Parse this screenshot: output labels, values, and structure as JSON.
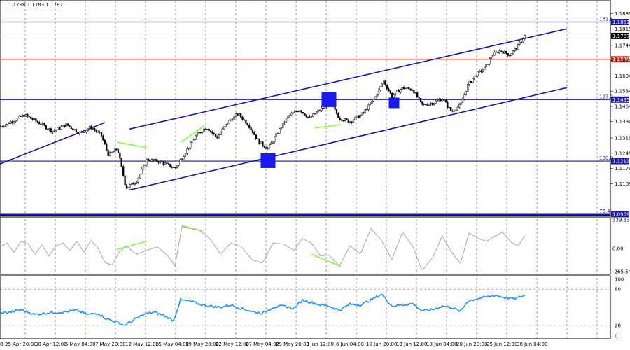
{
  "header": {
    "symbol_text": "1.1788 1.1783 1.1787"
  },
  "colors": {
    "bull": "#000000",
    "bear": "#000000",
    "channel": "#1a1aa0",
    "fib_line": "#1a1aa0",
    "level_red": "#e03020",
    "cci_line": "#a8a8a8",
    "rsi_line": "#1e90ff",
    "divergence": "#7cff3a",
    "marker": "#1a1aee",
    "tag_bg": "#1a1aa0",
    "tag_bg_red": "#e03020"
  },
  "price_panel": {
    "ylim": [
      1.0969,
      1.1933
    ],
    "ticks": [
      "1.1889",
      "1.1819",
      "1.1744",
      "1.1674",
      "1.1604",
      "1.1534",
      "1.1464",
      "1.1394",
      "1.1319",
      "1.1249",
      "1.1179",
      "1.1109"
    ],
    "tick_values": [
      1.1889,
      1.1819,
      1.1744,
      1.1674,
      1.1604,
      1.1534,
      1.1464,
      1.1394,
      1.1319,
      1.1249,
      1.1179,
      1.1109
    ],
    "levels": [
      {
        "name": "fib-161-8",
        "label": "161.8",
        "price": 1.1851,
        "tag": "1.1851",
        "color": "blue"
      },
      {
        "name": "level-1680",
        "label": "",
        "price": 1.168,
        "tag": "1.1680",
        "color": "red"
      },
      {
        "name": "fib-127-2",
        "label": "127.2",
        "price": 1.1495,
        "tag": "1.1495",
        "color": "blue"
      },
      {
        "name": "fib-100-0",
        "label": "100.0",
        "price": 1.1213,
        "tag": "1.1213",
        "color": "blue"
      },
      {
        "name": "fib-76-4",
        "label": "76.4",
        "price": 1.0969,
        "tag": "1.0969",
        "color": "blue"
      }
    ],
    "current_price": {
      "price": 1.1787,
      "tag": "1.1787"
    }
  },
  "cci_panel": {
    "ylim": [
      -265.544,
      329.3341
    ],
    "ticks": [
      "329.3341",
      "0.00",
      "-265.544"
    ],
    "tick_values": [
      329.3341,
      0,
      -265.544
    ]
  },
  "rsi_panel": {
    "ylim": [
      0,
      100
    ],
    "ticks": [
      "100",
      "80",
      "20",
      "0"
    ],
    "tick_values": [
      100,
      80,
      20,
      0
    ],
    "dashed_levels": [
      80,
      20
    ]
  },
  "x_axis": {
    "labels": [
      "25 Apr 20:00",
      "30 Apr 12:00",
      "5 May 04:00",
      "7 May 20:00",
      "12 May 12:00",
      "15 May 04:00",
      "19 May 20:00",
      "22 May 12:00",
      "27 May 04:00",
      "29 May 20:00",
      "3 Jun 12:00",
      "6 Jun 04:00",
      "10 Jun 20:00",
      "13 Jun 12:00",
      "18 Jun 04:00",
      "20 Jun 20:00",
      "25 Jun 12:00",
      "30 Jun 04:00"
    ],
    "edge_label": "0"
  },
  "chart_data": {
    "type": "candlestick",
    "title": "",
    "price_knots": [
      [
        0,
        1.137
      ],
      [
        20,
        1.14
      ],
      [
        35,
        1.1425
      ],
      [
        55,
        1.139
      ],
      [
        75,
        1.135
      ],
      [
        95,
        1.138
      ],
      [
        115,
        1.134
      ],
      [
        130,
        1.137
      ],
      [
        145,
        1.133
      ],
      [
        155,
        1.124
      ],
      [
        168,
        1.127
      ],
      [
        180,
        1.109
      ],
      [
        195,
        1.112
      ],
      [
        210,
        1.122
      ],
      [
        230,
        1.121
      ],
      [
        250,
        1.118
      ],
      [
        262,
        1.124
      ],
      [
        280,
        1.133
      ],
      [
        295,
        1.137
      ],
      [
        310,
        1.132
      ],
      [
        325,
        1.139
      ],
      [
        340,
        1.143
      ],
      [
        355,
        1.138
      ],
      [
        370,
        1.13
      ],
      [
        383,
        1.127
      ],
      [
        398,
        1.135
      ],
      [
        412,
        1.142
      ],
      [
        428,
        1.145
      ],
      [
        442,
        1.141
      ],
      [
        458,
        1.145
      ],
      [
        472,
        1.148
      ],
      [
        485,
        1.141
      ],
      [
        500,
        1.1395
      ],
      [
        518,
        1.143
      ],
      [
        535,
        1.15
      ],
      [
        548,
        1.158
      ],
      [
        560,
        1.151
      ],
      [
        575,
        1.155
      ],
      [
        590,
        1.154
      ],
      [
        603,
        1.147
      ],
      [
        618,
        1.148
      ],
      [
        632,
        1.15
      ],
      [
        645,
        1.144
      ],
      [
        658,
        1.147
      ],
      [
        668,
        1.156
      ],
      [
        680,
        1.161
      ],
      [
        693,
        1.164
      ],
      [
        703,
        1.17
      ],
      [
        715,
        1.172
      ],
      [
        728,
        1.17
      ],
      [
        740,
        1.174
      ],
      [
        750,
        1.179
      ]
    ],
    "cci_knots": [
      [
        0,
        20
      ],
      [
        10,
        60
      ],
      [
        20,
        -40
      ],
      [
        30,
        80
      ],
      [
        40,
        50
      ],
      [
        50,
        -60
      ],
      [
        60,
        40
      ],
      [
        70,
        -80
      ],
      [
        80,
        30
      ],
      [
        90,
        60
      ],
      [
        100,
        -20
      ],
      [
        110,
        80
      ],
      [
        120,
        -40
      ],
      [
        130,
        90
      ],
      [
        140,
        10
      ],
      [
        150,
        -150
      ],
      [
        160,
        -180
      ],
      [
        170,
        -40
      ],
      [
        180,
        30
      ],
      [
        195,
        -60
      ],
      [
        210,
        -20
      ],
      [
        225,
        20
      ],
      [
        240,
        -80
      ],
      [
        250,
        -190
      ],
      [
        260,
        240
      ],
      [
        272,
        220
      ],
      [
        285,
        200
      ],
      [
        300,
        110
      ],
      [
        315,
        -60
      ],
      [
        330,
        60
      ],
      [
        345,
        20
      ],
      [
        360,
        -120
      ],
      [
        375,
        -160
      ],
      [
        390,
        60
      ],
      [
        405,
        50
      ],
      [
        420,
        -20
      ],
      [
        432,
        110
      ],
      [
        445,
        60
      ],
      [
        458,
        -80
      ],
      [
        470,
        -70
      ],
      [
        485,
        -190
      ],
      [
        500,
        30
      ],
      [
        515,
        -60
      ],
      [
        530,
        220
      ],
      [
        545,
        90
      ],
      [
        560,
        -120
      ],
      [
        575,
        180
      ],
      [
        590,
        20
      ],
      [
        603,
        -240
      ],
      [
        618,
        -100
      ],
      [
        632,
        140
      ],
      [
        645,
        -40
      ],
      [
        658,
        -160
      ],
      [
        670,
        170
      ],
      [
        683,
        110
      ],
      [
        695,
        80
      ],
      [
        706,
        130
      ],
      [
        718,
        180
      ],
      [
        730,
        70
      ],
      [
        740,
        30
      ],
      [
        750,
        140
      ]
    ],
    "rsi_knots": [
      [
        0,
        40
      ],
      [
        15,
        42
      ],
      [
        30,
        46
      ],
      [
        50,
        38
      ],
      [
        70,
        41
      ],
      [
        90,
        42
      ],
      [
        110,
        45
      ],
      [
        125,
        38
      ],
      [
        140,
        40
      ],
      [
        150,
        32
      ],
      [
        165,
        26
      ],
      [
        178,
        20
      ],
      [
        190,
        28
      ],
      [
        205,
        38
      ],
      [
        220,
        42
      ],
      [
        235,
        36
      ],
      [
        248,
        28
      ],
      [
        258,
        62
      ],
      [
        272,
        60
      ],
      [
        285,
        55
      ],
      [
        300,
        52
      ],
      [
        315,
        50
      ],
      [
        330,
        54
      ],
      [
        345,
        48
      ],
      [
        360,
        43
      ],
      [
        375,
        40
      ],
      [
        390,
        50
      ],
      [
        405,
        52
      ],
      [
        420,
        48
      ],
      [
        432,
        62
      ],
      [
        445,
        58
      ],
      [
        458,
        54
      ],
      [
        470,
        52
      ],
      [
        485,
        45
      ],
      [
        500,
        55
      ],
      [
        515,
        54
      ],
      [
        530,
        62
      ],
      [
        545,
        72
      ],
      [
        560,
        52
      ],
      [
        575,
        54
      ],
      [
        590,
        56
      ],
      [
        603,
        44
      ],
      [
        618,
        46
      ],
      [
        632,
        52
      ],
      [
        645,
        50
      ],
      [
        658,
        43
      ],
      [
        668,
        60
      ],
      [
        680,
        64
      ],
      [
        695,
        67
      ],
      [
        708,
        70
      ],
      [
        722,
        66
      ],
      [
        735,
        64
      ],
      [
        750,
        70
      ]
    ],
    "channels": [
      {
        "name": "left-channel-line",
        "from": [
          0,
          1.12
        ],
        "to": [
          150,
          1.139
        ]
      },
      {
        "name": "upper-channel-line",
        "from": [
          185,
          1.136
        ],
        "to": [
          810,
          1.182
        ]
      },
      {
        "name": "lower-channel-line",
        "from": [
          185,
          1.108
        ],
        "to": [
          810,
          1.155
        ]
      }
    ],
    "markers": [
      {
        "name": "marker-29-may",
        "x": 383,
        "price": 1.1215
      },
      {
        "name": "marker-3-jun",
        "x": 470,
        "price": 1.1495
      },
      {
        "name": "marker-13-jun",
        "x": 563,
        "price": 1.148
      }
    ],
    "divergences": [
      {
        "name": "price-divergence-1",
        "panel": "price",
        "from": [
          167,
          1.13
        ],
        "to": [
          210,
          1.1275
        ]
      },
      {
        "name": "price-divergence-2",
        "panel": "price",
        "from": [
          259,
          1.13
        ],
        "to": [
          292,
          1.1375
        ]
      },
      {
        "name": "price-divergence-3",
        "panel": "price",
        "from": [
          450,
          1.1365
        ],
        "to": [
          487,
          1.138
        ]
      },
      {
        "name": "cci-divergence-1",
        "panel": "cci",
        "from": [
          167,
          -10
        ],
        "to": [
          210,
          80
        ]
      },
      {
        "name": "cci-divergence-2",
        "panel": "cci",
        "from": [
          260,
          250
        ],
        "to": [
          288,
          195
        ]
      },
      {
        "name": "cci-divergence-3",
        "panel": "cci",
        "from": [
          445,
          -60
        ],
        "to": [
          487,
          -195
        ]
      }
    ]
  }
}
